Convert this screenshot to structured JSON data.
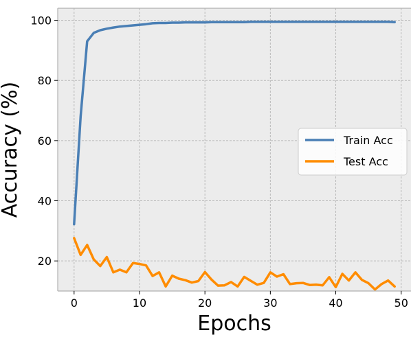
{
  "chart_data": {
    "type": "line",
    "title": "",
    "xlabel": "Epochs",
    "ylabel": "Accuracy (%)",
    "xlim": [
      -2.5,
      51.5
    ],
    "ylim": [
      10,
      104
    ],
    "xticks": [
      0,
      10,
      20,
      30,
      40,
      50
    ],
    "xtick_labels": [
      "0",
      "10",
      "20",
      "30",
      "40",
      "50"
    ],
    "yticks": [
      20,
      40,
      60,
      80,
      100
    ],
    "ytick_labels": [
      "20",
      "40",
      "60",
      "80",
      "100"
    ],
    "grid": true,
    "legend_position": "center-right",
    "background": "#ececec",
    "series": [
      {
        "name": "Train Acc",
        "color": "#4a7fb5",
        "x": [
          0,
          1,
          2,
          3,
          4,
          5,
          6,
          7,
          8,
          9,
          10,
          11,
          12,
          13,
          14,
          15,
          16,
          17,
          18,
          19,
          20,
          21,
          22,
          23,
          24,
          25,
          26,
          27,
          28,
          29,
          30,
          31,
          32,
          33,
          34,
          35,
          36,
          37,
          38,
          39,
          40,
          41,
          42,
          43,
          44,
          45,
          46,
          47,
          48,
          49
        ],
        "values": [
          32.2,
          68.0,
          93.0,
          95.8,
          96.7,
          97.2,
          97.6,
          97.9,
          98.1,
          98.3,
          98.5,
          98.7,
          99.0,
          99.1,
          99.1,
          99.2,
          99.2,
          99.3,
          99.3,
          99.3,
          99.3,
          99.4,
          99.4,
          99.4,
          99.4,
          99.4,
          99.4,
          99.5,
          99.5,
          99.5,
          99.5,
          99.5,
          99.5,
          99.5,
          99.5,
          99.5,
          99.5,
          99.5,
          99.5,
          99.5,
          99.5,
          99.5,
          99.5,
          99.5,
          99.5,
          99.5,
          99.5,
          99.5,
          99.5,
          99.4
        ]
      },
      {
        "name": "Test Acc",
        "color": "#ff8c00",
        "x": [
          0,
          1,
          2,
          3,
          4,
          5,
          6,
          7,
          8,
          9,
          10,
          11,
          12,
          13,
          14,
          15,
          16,
          17,
          18,
          19,
          20,
          21,
          22,
          23,
          24,
          25,
          26,
          27,
          28,
          29,
          30,
          31,
          32,
          33,
          34,
          35,
          36,
          37,
          38,
          39,
          40,
          41,
          42,
          43,
          44,
          45,
          46,
          47,
          48,
          49
        ],
        "values": [
          27.6,
          22.0,
          25.3,
          20.5,
          18.3,
          21.3,
          16.2,
          17.1,
          16.2,
          19.3,
          19.0,
          18.5,
          15.0,
          16.2,
          11.5,
          15.1,
          14.1,
          13.6,
          12.8,
          13.3,
          16.3,
          13.8,
          11.8,
          11.9,
          13.0,
          11.5,
          14.7,
          13.4,
          12.1,
          12.7,
          16.2,
          14.8,
          15.6,
          12.3,
          12.6,
          12.7,
          12.0,
          12.1,
          11.9,
          14.6,
          11.3,
          15.7,
          13.5,
          16.2,
          13.7,
          12.6,
          10.5,
          12.3,
          13.5,
          11.5
        ]
      }
    ]
  }
}
